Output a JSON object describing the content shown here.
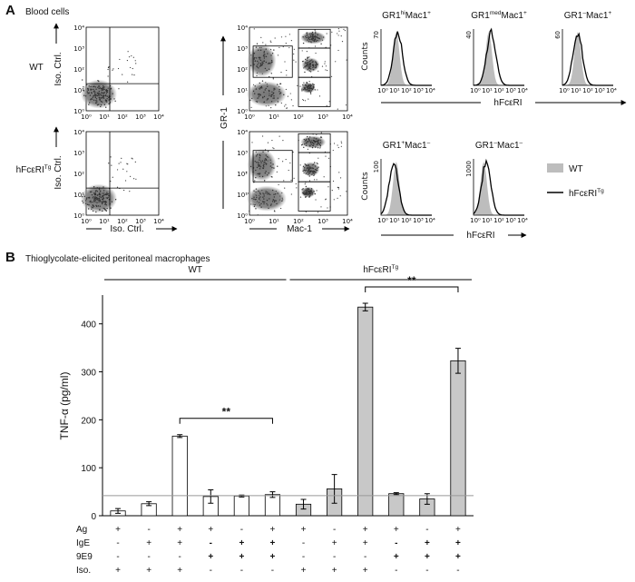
{
  "panel_a": {
    "label": "A",
    "title": "Blood cells",
    "row_labels": [
      [
        "WT"
      ],
      [
        "hFcεRI",
        "Tg"
      ]
    ],
    "log_ticks": [
      "10⁰",
      "10¹",
      "10²",
      "10³",
      "10⁴"
    ],
    "iso_label": "Iso. Ctrl.",
    "gr1_label": "GR-1",
    "mac1_label": "Mac-1",
    "counts_label": "Counts",
    "fc_label": "hFcεRI",
    "histograms": [
      {
        "title": [
          "GR1",
          "hi",
          "Mac1",
          "+"
        ],
        "ymax": "70"
      },
      {
        "title": [
          "GR1",
          "med",
          "Mac1",
          "+"
        ],
        "ymax": "40"
      },
      {
        "title": [
          "GR1",
          "–",
          "Mac1",
          "+"
        ],
        "ymax": "60"
      },
      {
        "title": [
          "GR1",
          "+",
          "Mac1",
          "–"
        ],
        "ymax": "100"
      },
      {
        "title": [
          "GR1",
          "–",
          "Mac1",
          "–"
        ],
        "ymax": "1000"
      }
    ],
    "legend": [
      [
        "WT"
      ],
      [
        "hFcεRI",
        "Tg"
      ]
    ]
  },
  "chart_data": {
    "type": "bar",
    "label": "B",
    "title": "Thioglycolate-elicited peritoneal macrophages",
    "ylabel": "TNF-α (pg/ml)",
    "ylim": [
      0,
      460
    ],
    "yticks": [
      0,
      100,
      200,
      300,
      400
    ],
    "reference_line": 42,
    "series": [
      {
        "name": [
          "WT"
        ],
        "color": "#ffffff",
        "values": [
          10,
          25,
          166,
          40,
          41,
          44
        ],
        "errors": [
          5,
          4,
          3,
          14,
          2,
          6
        ],
        "comparison_label": "**"
      },
      {
        "name": [
          "hFcεRI",
          "Tg"
        ],
        "color": "#c8c8c8",
        "values": [
          24,
          56,
          435,
          46,
          35,
          323
        ],
        "errors": [
          10,
          30,
          8,
          2,
          11,
          26
        ],
        "comparison_label": "**"
      }
    ],
    "conditions": {
      "rows": [
        "Ag",
        "IgE",
        "9E9",
        "Iso."
      ],
      "values": [
        [
          "+",
          "-",
          "+",
          "+",
          "-",
          "+",
          "+",
          "-",
          "+",
          "+",
          "-",
          "+"
        ],
        [
          "-",
          "+",
          "+",
          "-",
          "+",
          "+",
          "-",
          "+",
          "+",
          "-",
          "+",
          "+"
        ],
        [
          "-",
          "-",
          "-",
          "+",
          "+",
          "+",
          "-",
          "-",
          "-",
          "+",
          "+",
          "+"
        ],
        [
          "+",
          "+",
          "+",
          "-",
          "-",
          "-",
          "+",
          "+",
          "+",
          "-",
          "-",
          "-"
        ]
      ]
    }
  }
}
